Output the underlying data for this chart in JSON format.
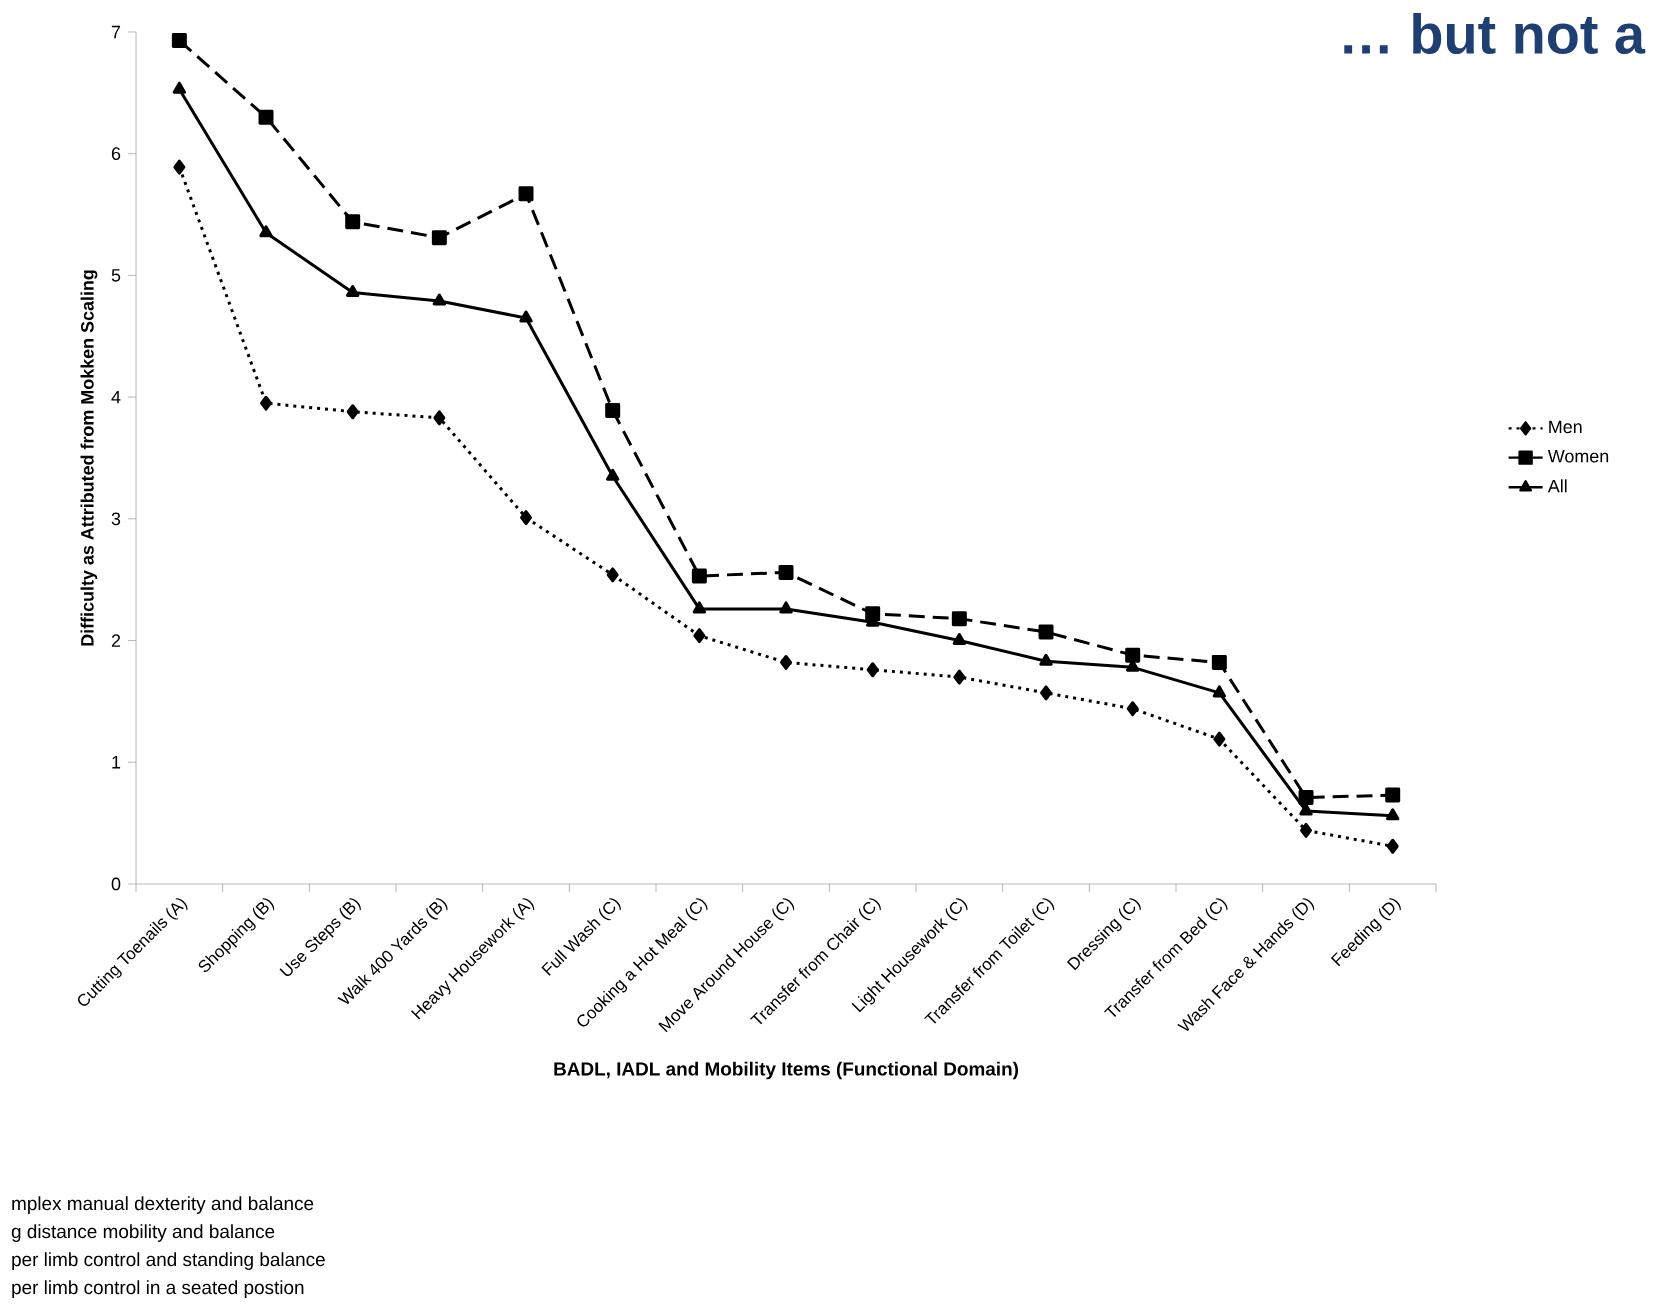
{
  "chart_data": {
    "type": "line",
    "title": "… but not a",
    "xlabel": "BADL, IADL and Mobility Items (Functional Domain)",
    "ylabel": "Difficulty as Attributed from Mokken Scaling",
    "categories": [
      "Cutting Toenails (A)",
      "Shopping (B)",
      "Use Steps (B)",
      "Walk 400 Yards (B)",
      "Heavy Housework (A)",
      "Full Wash (C)",
      "Cooking a Hot Meal (C)",
      "Move Around House (C)",
      "Transfer from Chair (C)",
      "Light Housework (C)",
      "Transfer from Toilet (C)",
      "Dressing (C)",
      "Transfer from Bed (C)",
      "Wash Face & Hands (D)",
      "Feeding (D)"
    ],
    "series": [
      {
        "name": "Men",
        "color": "#000000",
        "marker": "diamond",
        "line_style": "dotted",
        "values": [
          5.89,
          3.95,
          3.88,
          3.83,
          3.01,
          2.54,
          2.04,
          1.82,
          1.76,
          1.7,
          1.57,
          1.44,
          1.19,
          0.44,
          0.31
        ]
      },
      {
        "name": "Women",
        "color": "#000000",
        "marker": "square",
        "line_style": "dashed",
        "values": [
          6.93,
          6.3,
          5.44,
          5.31,
          5.67,
          3.89,
          2.53,
          2.56,
          2.22,
          2.18,
          2.07,
          1.88,
          1.82,
          0.71,
          0.73
        ]
      },
      {
        "name": "All",
        "color": "#000000",
        "marker": "triangle",
        "line_style": "solid",
        "values": [
          6.53,
          5.35,
          4.86,
          4.79,
          4.65,
          3.35,
          2.26,
          2.26,
          2.15,
          2.0,
          1.83,
          1.78,
          1.57,
          0.6,
          0.56
        ]
      }
    ],
    "ylim": [
      0,
      7
    ],
    "yticks": [
      0,
      1,
      2,
      3,
      4,
      5,
      6,
      7
    ],
    "grid": false,
    "legend": "right",
    "annotations": [
      "mplex manual dexterity and balance",
      "g distance mobility and balance",
      "per limb control and standing balance",
      "per limb control in a seated postion"
    ]
  }
}
